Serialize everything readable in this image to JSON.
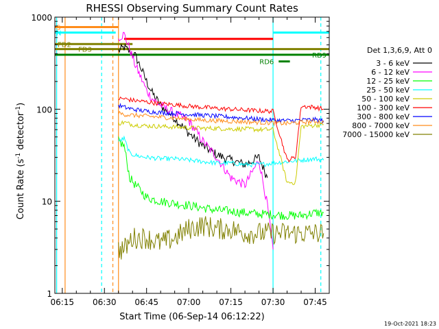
{
  "chart_data": {
    "type": "line",
    "title": "RHESSI Observing Summary Count Rates",
    "xlabel": "Start Time (06-Sep-14 06:12:22)",
    "ylabel": "Count Rate (s⁻¹ detector⁻¹)",
    "ylabel_main": "Count Rate (s",
    "ylabel_sup1": "-1",
    "ylabel_mid": " detector",
    "ylabel_sup2": "-1",
    "ylabel_end": ")",
    "y_scale": "log",
    "ylim": [
      1,
      1000
    ],
    "xlim": [
      "06:12:22",
      "07:50:00"
    ],
    "x_ticks": [
      "06:15",
      "06:30",
      "06:45",
      "07:00",
      "07:15",
      "07:30",
      "07:45"
    ],
    "y_ticks": [
      "1",
      "10",
      "100",
      "1000"
    ],
    "legend_title": "Det 1,3,6,9, Att 0",
    "legend_position": "right",
    "series": [
      {
        "name": "3 - 6 keV",
        "color": "#000000",
        "x": [
          "06:35",
          "06:37",
          "06:39",
          "06:41",
          "06:43",
          "06:45",
          "06:47",
          "06:50",
          "06:55",
          "07:00",
          "07:05",
          "07:10",
          "07:15",
          "07:20",
          "07:25",
          "07:28"
        ],
        "values": [
          430,
          470,
          420,
          380,
          280,
          200,
          150,
          110,
          80,
          55,
          40,
          32,
          28,
          25,
          30,
          18
        ]
      },
      {
        "name": "6 - 12 keV",
        "color": "#ff00ff",
        "x": [
          "06:35",
          "06:37",
          "06:39",
          "06:41",
          "06:43",
          "06:45",
          "06:47",
          "06:50",
          "06:55",
          "07:00",
          "07:05",
          "07:10",
          "07:15",
          "07:20",
          "07:25",
          "07:28",
          "07:30"
        ],
        "values": [
          600,
          650,
          450,
          300,
          220,
          160,
          130,
          110,
          90,
          75,
          45,
          30,
          18,
          15,
          28,
          9,
          3
        ]
      },
      {
        "name": "12 - 25 keV",
        "color": "#00ff00",
        "x": [
          "06:35",
          "06:37",
          "06:39",
          "06:41",
          "06:43",
          "06:45",
          "06:50",
          "06:55",
          "07:00",
          "07:05",
          "07:10",
          "07:15",
          "07:20",
          "07:25",
          "07:30",
          "07:35",
          "07:40",
          "07:45",
          "07:48"
        ],
        "values": [
          45,
          40,
          18,
          15,
          13,
          11,
          10,
          9.5,
          9,
          8.5,
          8,
          7.8,
          7.5,
          7.3,
          7.2,
          7,
          7,
          7.5,
          7.5
        ]
      },
      {
        "name": "25 - 50 keV",
        "color": "#00ffff",
        "x": [
          "06:35",
          "06:37",
          "06:39",
          "06:42",
          "06:45",
          "06:50",
          "06:55",
          "07:00",
          "07:05",
          "07:10",
          "07:15",
          "07:20",
          "07:25",
          "07:30",
          "07:35",
          "07:40",
          "07:45",
          "07:48"
        ],
        "values": [
          45,
          48,
          33,
          31,
          30,
          29,
          29,
          28,
          27,
          26,
          26,
          25,
          25,
          26,
          27,
          28,
          29,
          28
        ]
      },
      {
        "name": "50 - 100 keV",
        "color": "#cccc00",
        "x": [
          "06:35",
          "06:37",
          "06:40",
          "06:45",
          "06:50",
          "06:55",
          "07:00",
          "07:05",
          "07:10",
          "07:15",
          "07:20",
          "07:25",
          "07:30",
          "07:35",
          "07:38",
          "07:40",
          "07:45",
          "07:48"
        ],
        "values": [
          70,
          72,
          68,
          66,
          65,
          64,
          63,
          62,
          62,
          61,
          61,
          60,
          60,
          16,
          16,
          65,
          67,
          68
        ]
      },
      {
        "name": "100 - 300 keV",
        "color": "#ff0000",
        "x": [
          "06:35",
          "06:37",
          "06:40",
          "06:45",
          "06:50",
          "06:55",
          "07:00",
          "07:05",
          "07:10",
          "07:15",
          "07:20",
          "07:25",
          "07:30",
          "07:35",
          "07:38",
          "07:40",
          "07:45",
          "07:48"
        ],
        "values": [
          130,
          130,
          125,
          120,
          115,
          112,
          108,
          105,
          102,
          100,
          98,
          96,
          95,
          28,
          30,
          108,
          105,
          100
        ]
      },
      {
        "name": "300 - 800 keV",
        "color": "#0000ff",
        "x": [
          "06:35",
          "06:37",
          "06:40",
          "06:45",
          "06:50",
          "06:55",
          "07:00",
          "07:05",
          "07:10",
          "07:15",
          "07:20",
          "07:25",
          "07:30",
          "07:35",
          "07:40",
          "07:45",
          "07:48"
        ],
        "values": [
          110,
          105,
          100,
          95,
          92,
          90,
          88,
          86,
          84,
          82,
          80,
          78,
          76,
          75,
          76,
          77,
          75
        ]
      },
      {
        "name": "800 - 7000 keV",
        "color": "#ff8c1a",
        "x": [
          "06:35",
          "06:37",
          "06:40",
          "06:45",
          "06:50",
          "06:55",
          "07:00",
          "07:05",
          "07:10",
          "07:15",
          "07:20",
          "07:25",
          "07:30",
          "07:35",
          "07:40",
          "07:45",
          "07:48"
        ],
        "values": [
          90,
          88,
          86,
          84,
          82,
          80,
          78,
          76,
          75,
          74,
          73,
          72,
          71,
          70,
          72,
          74,
          72
        ]
      },
      {
        "name": "7000 - 15000 keV",
        "color": "#808000",
        "x": [
          "06:35",
          "06:37",
          "06:40",
          "06:45",
          "06:50",
          "06:55",
          "07:00",
          "07:05",
          "07:10",
          "07:15",
          "07:20",
          "07:25",
          "07:30",
          "07:35",
          "07:40",
          "07:45",
          "07:48"
        ],
        "values": [
          3,
          3,
          4,
          4,
          3.5,
          4,
          5,
          5.5,
          5,
          5,
          4.5,
          4.5,
          4.5,
          4.5,
          4.5,
          4.5,
          4.5
        ]
      }
    ],
    "flags": [
      {
        "label": "S",
        "color": "#ff8c1a",
        "level": 780,
        "x": [
          "06:12:22",
          "06:35"
        ]
      },
      {
        "label": "N",
        "color": "#00ffff",
        "level": 680,
        "x": [
          "06:12:22",
          "06:34"
        ]
      },
      {
        "label": "N",
        "color": "#00ffff",
        "level": 680,
        "x": [
          "07:30",
          "07:50"
        ]
      },
      {
        "label": "",
        "color": "#ff0000",
        "level": 580,
        "x": [
          "06:37",
          "07:30"
        ]
      },
      {
        "label": "FD2",
        "color": "#808000",
        "level": 510,
        "x": [
          "06:12:22",
          "06:40"
        ]
      },
      {
        "label": "FD3",
        "color": "#808000",
        "level": 450,
        "x": [
          "06:12:22",
          "07:50"
        ]
      },
      {
        "label": "RD9",
        "color": "#008000",
        "level": 390,
        "x": [
          "06:12:22",
          "07:50"
        ]
      },
      {
        "label": "RD6",
        "color": "#008000",
        "level": 330,
        "x": [
          "07:32",
          "07:36"
        ]
      }
    ],
    "vertical_markers": [
      {
        "time": "06:13",
        "color": "#00ffff",
        "style": "solid"
      },
      {
        "time": "06:16",
        "color": "#ff8c1a",
        "style": "solid"
      },
      {
        "time": "06:29",
        "color": "#00ffff",
        "style": "dashed"
      },
      {
        "time": "06:33",
        "color": "#ff8c1a",
        "style": "dashed"
      },
      {
        "time": "06:35",
        "color": "#ff8c1a",
        "style": "solid"
      },
      {
        "time": "07:30",
        "color": "#00ffff",
        "style": "solid"
      },
      {
        "time": "07:47",
        "color": "#00ffff",
        "style": "dashed"
      }
    ]
  },
  "footer": {
    "timestamp": "19-Oct-2021 18:23"
  }
}
